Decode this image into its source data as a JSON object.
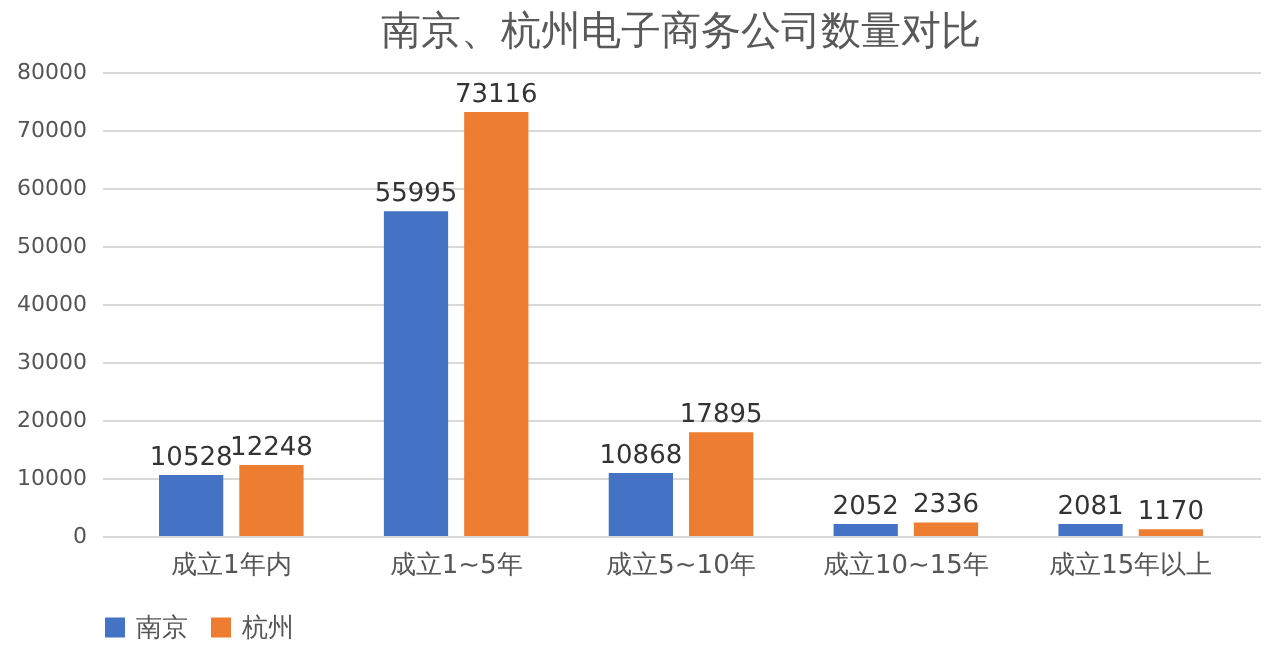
{
  "chart_data": {
    "type": "bar",
    "title": "南京、杭州电子商务公司数量对比",
    "categories": [
      "成立1年内",
      "成立1~5年",
      "成立5~10年",
      "成立10~15年",
      "成立15年以上"
    ],
    "series": [
      {
        "name": "南京",
        "color": "#4472c4",
        "values": [
          10528,
          55995,
          10868,
          2052,
          2081
        ]
      },
      {
        "name": "杭州",
        "color": "#ed7d31",
        "values": [
          12248,
          73116,
          17895,
          2336,
          1170
        ]
      }
    ],
    "ylim": [
      0,
      80000
    ],
    "yticks": [
      0,
      10000,
      20000,
      30000,
      40000,
      50000,
      60000,
      70000,
      80000
    ],
    "grid": "y",
    "legend": "bottom",
    "data_labels": true
  }
}
